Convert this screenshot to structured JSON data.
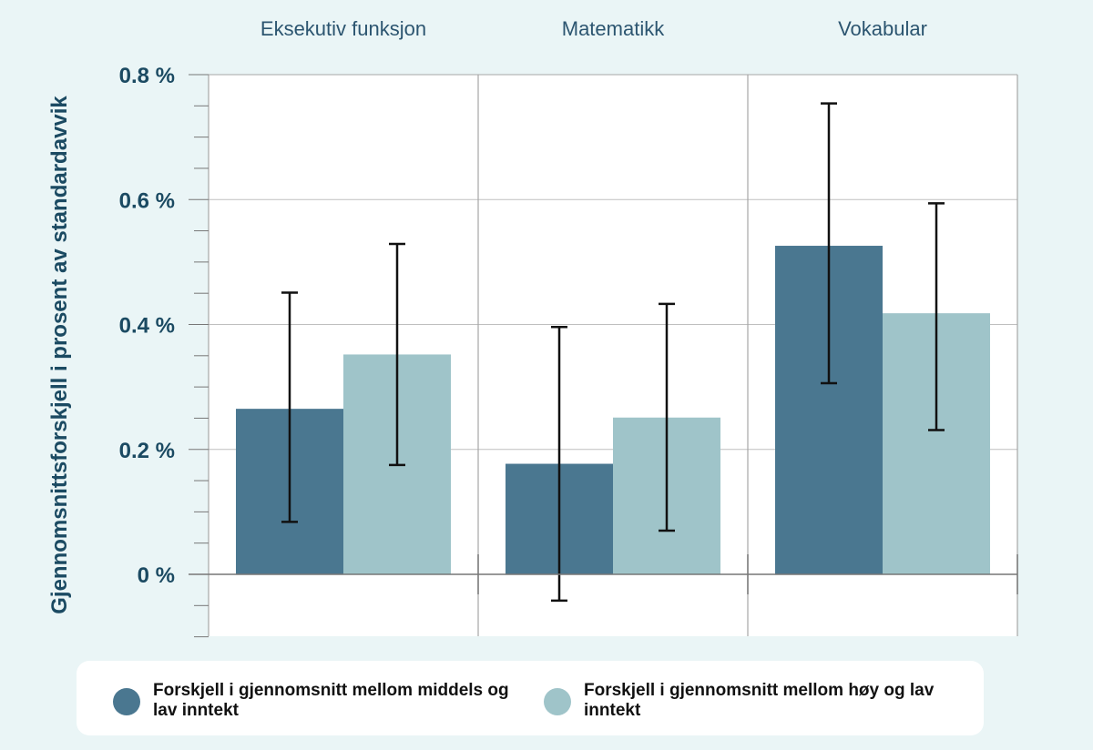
{
  "chart_data": {
    "type": "bar",
    "facets": [
      "Eksekutiv funksjon",
      "Matematikk",
      "Vokabular"
    ],
    "ylabel": "Gjennomsnittsforskjell i prosent av standardavvik",
    "ylim": [
      -0.1,
      0.8
    ],
    "yticks": [
      0,
      0.2,
      0.4,
      0.6,
      0.8
    ],
    "ytick_labels": [
      "0 %",
      "0.2 %",
      "0.4 %",
      "0.6 %",
      "0.8 %"
    ],
    "series": [
      {
        "name": "Forskjell i gjennomsnitt mellom middels og lav inntekt",
        "color": "#4a7790",
        "values": [
          0.265,
          0.177,
          0.526
        ],
        "err_low": [
          0.084,
          -0.042,
          0.306
        ],
        "err_high": [
          0.451,
          0.396,
          0.754
        ]
      },
      {
        "name": "Forskjell i gjennomsnitt mellom høy og lav inntekt",
        "color": "#9fc4c9",
        "values": [
          0.352,
          0.251,
          0.418
        ],
        "err_low": [
          0.175,
          0.07,
          0.231
        ],
        "err_high": [
          0.529,
          0.433,
          0.594
        ]
      }
    ],
    "grid": true,
    "legend_position": "bottom",
    "colors": {
      "background": "#eaf5f6",
      "axis_text": "#1b4a62",
      "facet_text": "#2c5570"
    }
  }
}
